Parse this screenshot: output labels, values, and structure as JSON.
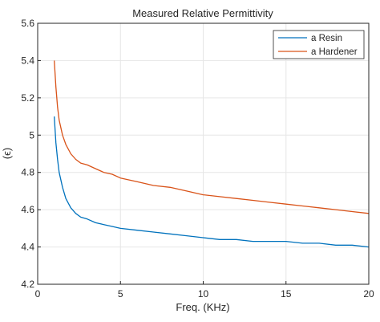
{
  "chart_data": {
    "type": "line",
    "title": "Measured Relative Permittivity",
    "xlabel": "Freq. (KHz)",
    "ylabel": "(ϵ)",
    "xlim": [
      0,
      20
    ],
    "ylim": [
      4.2,
      5.6
    ],
    "x_ticks": [
      "0",
      "5",
      "10",
      "15",
      "20"
    ],
    "y_ticks": [
      "4.2",
      "4.4",
      "4.6",
      "4.8",
      "5",
      "5.2",
      "5.4",
      "5.6"
    ],
    "grid": true,
    "legend_position": "top-right",
    "x": [
      1.0,
      1.1,
      1.2,
      1.3,
      1.5,
      1.7,
      2.0,
      2.3,
      2.6,
      3.0,
      3.5,
      4.0,
      4.5,
      5.0,
      6.0,
      7.0,
      8.0,
      9.0,
      10.0,
      11.0,
      12.0,
      13.0,
      14.0,
      15.0,
      16.0,
      17.0,
      18.0,
      19.0,
      20.0
    ],
    "series": [
      {
        "name": "a Resin",
        "color": "#0072BD",
        "values": [
          5.1,
          4.96,
          4.87,
          4.8,
          4.72,
          4.66,
          4.61,
          4.58,
          4.56,
          4.55,
          4.53,
          4.52,
          4.51,
          4.5,
          4.49,
          4.48,
          4.47,
          4.46,
          4.45,
          4.44,
          4.44,
          4.43,
          4.43,
          4.43,
          4.42,
          4.42,
          4.41,
          4.41,
          4.4
        ]
      },
      {
        "name": "a Hardener",
        "color": "#D95319",
        "values": [
          5.4,
          5.26,
          5.15,
          5.08,
          5.0,
          4.95,
          4.9,
          4.87,
          4.85,
          4.84,
          4.82,
          4.8,
          4.79,
          4.77,
          4.75,
          4.73,
          4.72,
          4.7,
          4.68,
          4.67,
          4.66,
          4.65,
          4.64,
          4.63,
          4.62,
          4.61,
          4.6,
          4.59,
          4.58
        ]
      }
    ]
  }
}
